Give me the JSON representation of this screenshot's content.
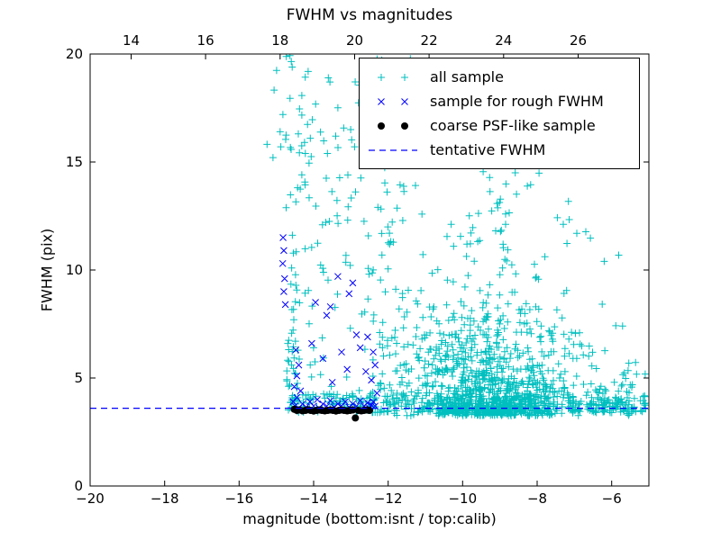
{
  "chart_data": {
    "type": "scatter",
    "title": "FWHM vs magnitudes",
    "xlabel": "magnitude (bottom:isnt / top:calib)",
    "ylabel": "FWHM (pix)",
    "xlim": [
      -20,
      -5
    ],
    "ylim": [
      0,
      20
    ],
    "x_ticks_bottom": [
      -20,
      -18,
      -16,
      -14,
      -12,
      -10,
      -8,
      -6
    ],
    "x_ticks_top": [
      14,
      16,
      18,
      20,
      22,
      24,
      26
    ],
    "top_axis_offset": 32.9,
    "y_ticks": [
      0,
      5,
      10,
      15,
      20
    ],
    "grid": false,
    "background_color": "#ffffff",
    "axes_color": "#000000",
    "tentative_fwhm": 3.6,
    "legend": {
      "position": "upper right",
      "entries": [
        {
          "label": "all sample",
          "marker": "plus",
          "color": "#00bfbf"
        },
        {
          "label": "sample for rough FWHM",
          "marker": "x",
          "color": "#0000ff"
        },
        {
          "label": "coarse PSF-like sample",
          "marker": "dot",
          "color": "#000000"
        },
        {
          "label": "tentative FWHM",
          "marker": "dashed-line",
          "color": "#0000ff"
        }
      ]
    },
    "series": [
      {
        "name": "all sample",
        "marker": "plus",
        "color": "#00bfbf",
        "seed": 12345,
        "clusters": [
          {
            "n": 48,
            "x": {
              "type": "uniform",
              "a": -14.72,
              "b": -14.42
            },
            "y": {
              "type": "exp",
              "base": 3.5,
              "scale": 1.6,
              "max": 9.5
            }
          },
          {
            "n": 22,
            "x": {
              "type": "uniform",
              "a": -14.75,
              "b": -14.3
            },
            "y": {
              "type": "uniform",
              "a": 9,
              "b": 20
            }
          },
          {
            "n": 7,
            "x": {
              "type": "uniform",
              "a": -15.35,
              "b": -14.8
            },
            "y": {
              "type": "uniform",
              "a": 15.2,
              "b": 19.8
            }
          },
          {
            "n": 150,
            "x": {
              "type": "uniform",
              "a": -14.45,
              "b": -11.4
            },
            "y": {
              "type": "uniform",
              "a": 4.2,
              "b": 19.8
            }
          },
          {
            "n": 110,
            "x": {
              "type": "uniform",
              "a": -14.55,
              "b": -11.5
            },
            "y": {
              "type": "uniform",
              "a": 3.4,
              "b": 4.3
            }
          },
          {
            "n": 680,
            "x": {
              "type": "normal",
              "mean": -9.2,
              "sd": 1.15,
              "min": -12.3,
              "max": -5.3
            },
            "y": {
              "type": "exp",
              "base": 3.25,
              "scale": 1.05,
              "max": 8.5
            }
          },
          {
            "n": 340,
            "x": {
              "type": "normal",
              "mean": -9.45,
              "sd": 1.35,
              "min": -12.4,
              "max": -5.6
            },
            "y": {
              "type": "normal",
              "mean": 5.6,
              "sd": 1.9,
              "min": 3.35,
              "max": 12.5
            }
          },
          {
            "n": 115,
            "x": {
              "type": "normal",
              "mean": -9.3,
              "sd": 1.45,
              "min": -12.2,
              "max": -5.8
            },
            "y": {
              "type": "uniform",
              "a": 8,
              "b": 18.5
            }
          },
          {
            "n": 75,
            "x": {
              "type": "uniform",
              "a": -6.7,
              "b": -5.08
            },
            "y": {
              "type": "exp",
              "base": 3.4,
              "scale": 0.8,
              "max": 6.5
            }
          },
          {
            "n": 185,
            "x": {
              "type": "uniform",
              "a": -11.5,
              "b": -5.1
            },
            "y": {
              "type": "uniform",
              "a": 3.35,
              "b": 4.15
            }
          }
        ]
      },
      {
        "name": "sample for rough FWHM",
        "marker": "x",
        "color": "#0000ff",
        "points": [
          [
            -14.82,
            11.5
          ],
          [
            -14.8,
            10.9
          ],
          [
            -14.83,
            10.3
          ],
          [
            -14.78,
            9.6
          ],
          [
            -14.8,
            9.0
          ],
          [
            -14.76,
            8.4
          ],
          [
            -14.52,
            4.6
          ],
          [
            -14.45,
            5.1
          ],
          [
            -14.4,
            5.6
          ],
          [
            -14.48,
            6.3
          ],
          [
            -14.35,
            4.4
          ],
          [
            -14.05,
            6.6
          ],
          [
            -13.95,
            8.5
          ],
          [
            -13.75,
            5.9
          ],
          [
            -13.65,
            7.9
          ],
          [
            -13.55,
            8.3
          ],
          [
            -13.5,
            4.8
          ],
          [
            -13.35,
            9.7
          ],
          [
            -13.25,
            6.2
          ],
          [
            -13.1,
            5.4
          ],
          [
            -13.05,
            8.9
          ],
          [
            -12.95,
            9.4
          ],
          [
            -12.85,
            7.0
          ],
          [
            -12.75,
            6.4
          ],
          [
            -12.6,
            5.3
          ],
          [
            -12.55,
            6.9
          ],
          [
            -12.45,
            4.9
          ],
          [
            -12.4,
            6.2
          ],
          [
            -12.35,
            5.6
          ],
          [
            -14.55,
            3.9
          ],
          [
            -14.5,
            3.7
          ],
          [
            -14.45,
            4.1
          ],
          [
            -14.4,
            3.6
          ],
          [
            -14.3,
            3.8
          ],
          [
            -14.2,
            3.65
          ],
          [
            -14.1,
            3.9
          ],
          [
            -14.0,
            3.7
          ],
          [
            -13.9,
            4.0
          ],
          [
            -13.85,
            3.6
          ],
          [
            -13.75,
            3.8
          ],
          [
            -13.65,
            3.7
          ],
          [
            -13.55,
            3.95
          ],
          [
            -13.45,
            3.65
          ],
          [
            -13.35,
            3.8
          ],
          [
            -13.25,
            3.7
          ],
          [
            -13.15,
            3.9
          ],
          [
            -13.05,
            3.65
          ],
          [
            -12.95,
            3.8
          ],
          [
            -12.85,
            3.7
          ],
          [
            -12.75,
            3.95
          ],
          [
            -12.65,
            3.7
          ],
          [
            -12.55,
            3.85
          ],
          [
            -12.5,
            3.6
          ],
          [
            -12.45,
            3.75
          ],
          [
            -12.4,
            3.9
          ],
          [
            -12.35,
            3.7
          ],
          [
            -12.3,
            4.3
          ]
        ]
      },
      {
        "name": "coarse PSF-like sample",
        "marker": "dot",
        "color": "#000000",
        "points": [
          [
            -14.52,
            3.55
          ],
          [
            -14.45,
            3.5
          ],
          [
            -14.38,
            3.52
          ],
          [
            -14.3,
            3.48
          ],
          [
            -14.22,
            3.5
          ],
          [
            -14.15,
            3.53
          ],
          [
            -14.08,
            3.5
          ],
          [
            -14.0,
            3.47
          ],
          [
            -13.92,
            3.5
          ],
          [
            -13.85,
            3.52
          ],
          [
            -13.78,
            3.5
          ],
          [
            -13.7,
            3.48
          ],
          [
            -13.62,
            3.5
          ],
          [
            -13.55,
            3.52
          ],
          [
            -13.48,
            3.5
          ],
          [
            -13.4,
            3.47
          ],
          [
            -13.32,
            3.5
          ],
          [
            -13.25,
            3.52
          ],
          [
            -13.18,
            3.5
          ],
          [
            -13.1,
            3.48
          ],
          [
            -13.02,
            3.5
          ],
          [
            -12.95,
            3.52
          ],
          [
            -12.88,
            3.15
          ],
          [
            -12.8,
            3.5
          ],
          [
            -12.72,
            3.48
          ],
          [
            -12.65,
            3.5
          ],
          [
            -12.58,
            3.52
          ],
          [
            -12.5,
            3.5
          ]
        ]
      },
      {
        "name": "tentative FWHM",
        "type": "hline",
        "y": 3.6,
        "color": "#0000ff",
        "dash": [
          7,
          5
        ]
      }
    ]
  }
}
